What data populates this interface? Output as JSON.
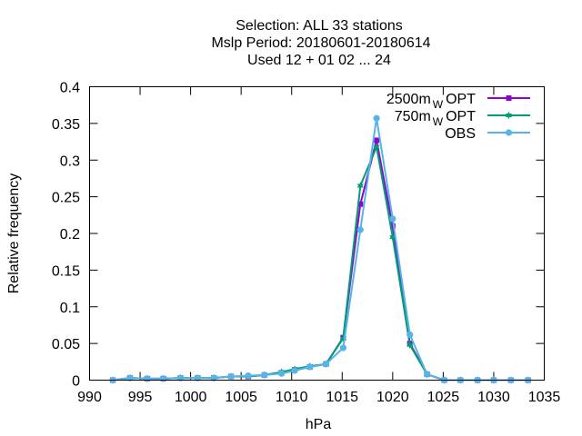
{
  "chart_data": {
    "type": "line",
    "title_lines": [
      "Selection: ALL      33 stations",
      "Mslp  Period: 20180601-20180614",
      "Used  12 + 01 02 ... 24"
    ],
    "xlabel": "hPa",
    "ylabel": "Relative frequency",
    "xlim": [
      990,
      1035
    ],
    "ylim": [
      0,
      0.4
    ],
    "xticks": [
      "990",
      "995",
      "1000",
      "1005",
      "1010",
      "1015",
      "1020",
      "1025",
      "1030",
      "1035"
    ],
    "yticks": [
      "0",
      "0.05",
      "0.1",
      "0.15",
      "0.2",
      "0.25",
      "0.3",
      "0.35",
      "0.4"
    ],
    "grid": false,
    "legend_position": "top-right",
    "series": [
      {
        "name": "2500m",
        "name_sub": "W",
        "name_suffix": "OPT",
        "color": "#9400d3",
        "marker": "square",
        "x": [
          992.3,
          994.0,
          995.7,
          997.3,
          999.0,
          1000.7,
          1002.3,
          1004.0,
          1005.7,
          1007.3,
          1009.0,
          1010.3,
          1011.8,
          1013.4,
          1015.1,
          1016.8,
          1018.4,
          1020.0,
          1021.7,
          1023.4,
          1025.1,
          1026.7,
          1028.4,
          1030.0,
          1031.7,
          1033.4
        ],
        "y": [
          0.0,
          0.003,
          0.002,
          0.002,
          0.003,
          0.003,
          0.003,
          0.005,
          0.005,
          0.007,
          0.01,
          0.014,
          0.018,
          0.022,
          0.058,
          0.24,
          0.327,
          0.21,
          0.05,
          0.008,
          0.0,
          0.0,
          0.0,
          0.0,
          0.0,
          0.0
        ]
      },
      {
        "name": "750m",
        "name_sub": "W",
        "name_suffix": "OPT",
        "color": "#009e73",
        "marker": "star",
        "x": [
          992.3,
          994.0,
          995.7,
          997.3,
          999.0,
          1000.7,
          1002.3,
          1004.0,
          1005.7,
          1007.3,
          1009.0,
          1010.3,
          1011.8,
          1013.4,
          1015.1,
          1016.8,
          1018.4,
          1020.0,
          1021.7,
          1023.4,
          1025.1,
          1026.7,
          1028.4,
          1030.0,
          1031.7,
          1033.4
        ],
        "y": [
          0.0,
          0.003,
          0.002,
          0.002,
          0.003,
          0.003,
          0.003,
          0.005,
          0.005,
          0.007,
          0.011,
          0.015,
          0.019,
          0.022,
          0.057,
          0.265,
          0.318,
          0.195,
          0.048,
          0.008,
          0.0,
          0.0,
          0.0,
          0.0,
          0.0,
          0.0
        ]
      },
      {
        "name": "OBS",
        "name_sub": "",
        "name_suffix": "",
        "color": "#56b4e9",
        "marker": "circle",
        "x": [
          992.3,
          994.0,
          995.7,
          997.3,
          999.0,
          1000.7,
          1002.3,
          1004.0,
          1005.7,
          1007.3,
          1009.0,
          1010.3,
          1011.8,
          1013.4,
          1015.1,
          1016.8,
          1018.4,
          1020.0,
          1021.7,
          1023.4,
          1025.1,
          1026.7,
          1028.4,
          1030.0,
          1031.7,
          1033.4
        ],
        "y": [
          0.0,
          0.003,
          0.002,
          0.002,
          0.003,
          0.003,
          0.003,
          0.005,
          0.006,
          0.007,
          0.009,
          0.013,
          0.018,
          0.022,
          0.044,
          0.205,
          0.357,
          0.22,
          0.062,
          0.008,
          0.0,
          0.0,
          0.0,
          0.0,
          0.0,
          0.0
        ]
      }
    ]
  }
}
